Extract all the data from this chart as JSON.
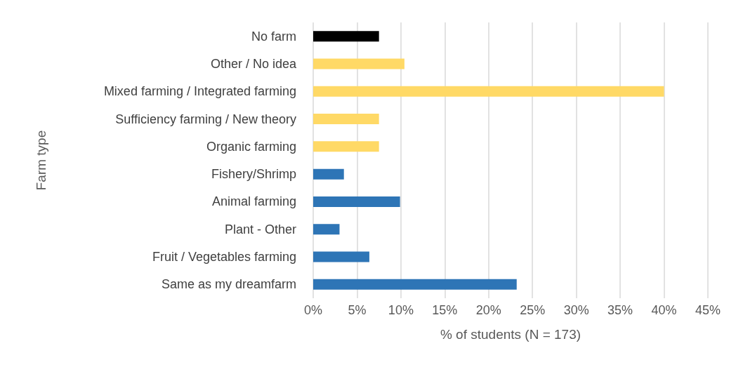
{
  "chart_data": {
    "type": "bar",
    "orientation": "horizontal",
    "xlabel": "% of students (N = 173)",
    "ylabel": "Farm type",
    "categories": [
      "No farm",
      "Other / No idea",
      "Mixed farming / Integrated farming",
      "Sufficiency farming / New theory",
      "Organic farming",
      "Fishery/Shrimp",
      "Animal farming",
      "Plant - Other",
      "Fruit / Vegetables farming",
      "Same as my dreamfarm"
    ],
    "values": [
      7.5,
      10.4,
      40.0,
      7.5,
      7.5,
      3.5,
      9.9,
      3.0,
      6.4,
      23.2
    ],
    "colors": [
      "#000000",
      "#ffd966",
      "#ffd966",
      "#ffd966",
      "#ffd966",
      "#2e75b6",
      "#2e75b6",
      "#2e75b6",
      "#2e75b6",
      "#2e75b6"
    ],
    "xlim": [
      0,
      45
    ],
    "xticks": [
      {
        "value": 0,
        "label": "0%"
      },
      {
        "value": 5,
        "label": "5%"
      },
      {
        "value": 10,
        "label": "10%"
      },
      {
        "value": 15,
        "label": "15%"
      },
      {
        "value": 20,
        "label": "20%"
      },
      {
        "value": 25,
        "label": "25%"
      },
      {
        "value": 30,
        "label": "30%"
      },
      {
        "value": 35,
        "label": "35%"
      },
      {
        "value": 40,
        "label": "40%"
      },
      {
        "value": 45,
        "label": "45%"
      }
    ],
    "grid": "x"
  }
}
